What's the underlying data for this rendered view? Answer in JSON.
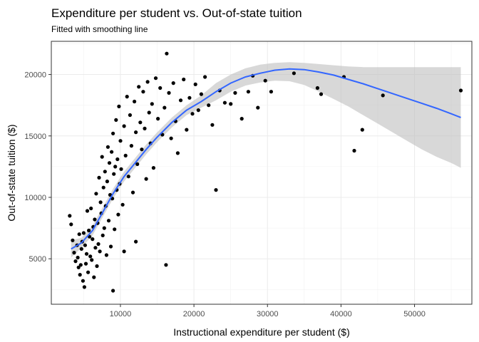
{
  "chart_data": {
    "type": "scatter",
    "title": "Expenditure per student vs. Out-of-state tuition",
    "subtitle": "Fitted with smoothing line",
    "xlabel": "Instructional expenditure per student ($)",
    "ylabel": "Out-of-state tuition ($)",
    "xlim": [
      600,
      57800
    ],
    "ylim": [
      1300,
      22700
    ],
    "x_ticks": [
      10000,
      20000,
      30000,
      40000,
      50000
    ],
    "x_tick_labels": [
      "10000",
      "20000",
      "30000",
      "40000",
      "50000"
    ],
    "y_ticks": [
      5000,
      10000,
      15000,
      20000
    ],
    "y_tick_labels": [
      "5000",
      "10000",
      "15000",
      "20000"
    ],
    "grid": true,
    "colors": {
      "points": "#000000",
      "smooth_line": "#3366ff",
      "ribbon": "#bebebe",
      "grid": "#ebebeb",
      "panel_border": "#333333"
    },
    "series": [
      {
        "points": [
          [
            3100,
            8500
          ],
          [
            3300,
            7800
          ],
          [
            3500,
            6500
          ],
          [
            3700,
            5500
          ],
          [
            3900,
            4800
          ],
          [
            4100,
            6100
          ],
          [
            4200,
            5100
          ],
          [
            4300,
            4300
          ],
          [
            4400,
            7000
          ],
          [
            4500,
            3700
          ],
          [
            4600,
            4500
          ],
          [
            4700,
            5800
          ],
          [
            4800,
            6400
          ],
          [
            4900,
            3200
          ],
          [
            5000,
            7100
          ],
          [
            5100,
            2700
          ],
          [
            5200,
            6100
          ],
          [
            5300,
            4600
          ],
          [
            5400,
            5400
          ],
          [
            5500,
            8900
          ],
          [
            5600,
            3900
          ],
          [
            5700,
            7300
          ],
          [
            5800,
            6800
          ],
          [
            5900,
            5200
          ],
          [
            6000,
            9100
          ],
          [
            6100,
            4900
          ],
          [
            6200,
            6600
          ],
          [
            6300,
            7600
          ],
          [
            6400,
            3500
          ],
          [
            6500,
            8200
          ],
          [
            6600,
            5900
          ],
          [
            6700,
            10300
          ],
          [
            6800,
            4400
          ],
          [
            6900,
            7900
          ],
          [
            7000,
            6200
          ],
          [
            7100,
            11600
          ],
          [
            7200,
            5600
          ],
          [
            7300,
            9600
          ],
          [
            7400,
            8700
          ],
          [
            7500,
            13300
          ],
          [
            7600,
            6900
          ],
          [
            7700,
            10800
          ],
          [
            7800,
            7500
          ],
          [
            7900,
            12100
          ],
          [
            8000,
            9300
          ],
          [
            8100,
            5300
          ],
          [
            8200,
            11300
          ],
          [
            8300,
            14100
          ],
          [
            8400,
            8100
          ],
          [
            8500,
            12800
          ],
          [
            8600,
            10200
          ],
          [
            8700,
            6000
          ],
          [
            8800,
            13700
          ],
          [
            8900,
            9900
          ],
          [
            9000,
            15200
          ],
          [
            9100,
            11900
          ],
          [
            9200,
            7400
          ],
          [
            9300,
            12500
          ],
          [
            9400,
            16300
          ],
          [
            9500,
            10600
          ],
          [
            9600,
            13100
          ],
          [
            9700,
            8600
          ],
          [
            9800,
            17400
          ],
          [
            9900,
            11100
          ],
          [
            10000,
            14600
          ],
          [
            10100,
            12300
          ],
          [
            10300,
            9400
          ],
          [
            10500,
            15800
          ],
          [
            10700,
            13400
          ],
          [
            10900,
            18200
          ],
          [
            11100,
            11700
          ],
          [
            11300,
            16700
          ],
          [
            11500,
            14200
          ],
          [
            11700,
            10400
          ],
          [
            11900,
            17800
          ],
          [
            12100,
            15300
          ],
          [
            12300,
            12700
          ],
          [
            12500,
            19000
          ],
          [
            12700,
            16100
          ],
          [
            12900,
            13900
          ],
          [
            13100,
            18600
          ],
          [
            13300,
            15600
          ],
          [
            13500,
            11500
          ],
          [
            13700,
            19400
          ],
          [
            13900,
            16900
          ],
          [
            14100,
            14400
          ],
          [
            14300,
            17600
          ],
          [
            14500,
            12400
          ],
          [
            14800,
            19700
          ],
          [
            15100,
            16400
          ],
          [
            15400,
            18900
          ],
          [
            15700,
            15100
          ],
          [
            16000,
            17300
          ],
          [
            16300,
            21700
          ],
          [
            16600,
            18500
          ],
          [
            16900,
            14800
          ],
          [
            17200,
            19300
          ],
          [
            17500,
            16200
          ],
          [
            17800,
            13600
          ],
          [
            18200,
            17900
          ],
          [
            18600,
            19600
          ],
          [
            19000,
            15500
          ],
          [
            19400,
            18100
          ],
          [
            19800,
            16800
          ],
          [
            20200,
            19200
          ],
          [
            20600,
            17100
          ],
          [
            21000,
            18400
          ],
          [
            21500,
            19800
          ],
          [
            22000,
            17500
          ],
          [
            22500,
            15900
          ],
          [
            23000,
            10600
          ],
          [
            23500,
            18700
          ],
          [
            24200,
            17700
          ],
          [
            25000,
            17600
          ],
          [
            25600,
            18500
          ],
          [
            26500,
            16400
          ],
          [
            27400,
            18600
          ],
          [
            28000,
            19900
          ],
          [
            28700,
            17300
          ],
          [
            29700,
            19500
          ],
          [
            30500,
            18600
          ],
          [
            33600,
            20100
          ],
          [
            36800,
            18900
          ],
          [
            37300,
            18400
          ],
          [
            40400,
            19800
          ],
          [
            41800,
            13800
          ],
          [
            42900,
            15500
          ],
          [
            45700,
            18300
          ],
          [
            56300,
            18700
          ],
          [
            9000,
            2400
          ],
          [
            16200,
            4500
          ],
          [
            10500,
            5600
          ],
          [
            12100,
            6400
          ]
        ]
      }
    ],
    "smooth": {
      "x": [
        3300,
        4700,
        6200,
        7700,
        9000,
        10500,
        12000,
        13500,
        15000,
        17000,
        19000,
        21000,
        23000,
        25000,
        27000,
        29000,
        31000,
        33000,
        35000,
        37000,
        39000,
        41000,
        43000,
        45000,
        47000,
        49000,
        51000,
        53000,
        55000,
        56300
      ],
      "y": [
        5800,
        6300,
        7300,
        8900,
        10300,
        11700,
        12800,
        13900,
        14900,
        16100,
        17100,
        17800,
        18600,
        19300,
        19800,
        20100,
        20350,
        20450,
        20400,
        20200,
        19950,
        19600,
        19250,
        18850,
        18450,
        18050,
        17650,
        17250,
        16800,
        16500
      ],
      "lower": [
        5100,
        5900,
        6900,
        8500,
        9900,
        11300,
        12400,
        13500,
        14500,
        15700,
        16700,
        17300,
        17900,
        18600,
        19100,
        19350,
        19500,
        19450,
        19150,
        18600,
        18000,
        17400,
        16700,
        16000,
        15300,
        14600,
        13900,
        13300,
        12800,
        12400
      ],
      "upper": [
        6500,
        6700,
        7700,
        9300,
        10700,
        12100,
        13200,
        14300,
        15300,
        16500,
        17500,
        18300,
        19300,
        20000,
        20500,
        20800,
        20950,
        21000,
        20950,
        20850,
        20750,
        20650,
        20600,
        20600,
        20600,
        20600,
        20600,
        20600,
        20600,
        20600
      ]
    }
  }
}
